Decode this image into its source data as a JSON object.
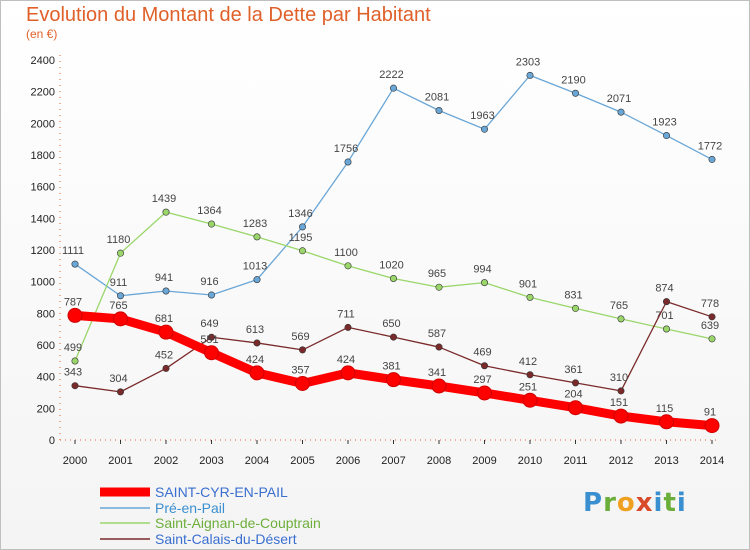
{
  "title": "Evolution du Montant de la Dette par Habitant",
  "subtitle": "(en €)",
  "logo": "Proxiti",
  "chart_data": {
    "type": "line",
    "title": "Evolution du Montant de la Dette par Habitant",
    "ylabel": "(en €)",
    "ylim": [
      0,
      2400
    ],
    "yticks": [
      0,
      200,
      400,
      600,
      800,
      1000,
      1200,
      1400,
      1600,
      1800,
      2000,
      2200,
      2400
    ],
    "x": [
      "2000",
      "2001",
      "2002",
      "2003",
      "2004",
      "2005",
      "2006",
      "2007",
      "2008",
      "2009",
      "2010",
      "2011",
      "2012",
      "2013",
      "2014"
    ],
    "legend_position": "bottom-left",
    "grid": false,
    "series": [
      {
        "name": "SAINT-CYR-EN-PAIL",
        "color": "#ff0000",
        "values": [
          787,
          765,
          681,
          551,
          424,
          357,
          424,
          381,
          341,
          297,
          251,
          204,
          151,
          115,
          91
        ]
      },
      {
        "name": "Pré-en-Pail",
        "color": "#6aa6d6",
        "values": [
          1111,
          911,
          941,
          916,
          1013,
          1346,
          1756,
          2222,
          2081,
          1963,
          2303,
          2190,
          2071,
          1923,
          1772
        ]
      },
      {
        "name": "Saint-Aignan-de-Couptrain",
        "color": "#9ad66a",
        "values": [
          499,
          1180,
          1439,
          1364,
          1283,
          1195,
          1100,
          1020,
          965,
          994,
          901,
          831,
          765,
          701,
          639
        ]
      },
      {
        "name": "Saint-Calais-du-Désert",
        "color": "#7a2a2a",
        "values": [
          343,
          304,
          452,
          649,
          613,
          569,
          711,
          650,
          587,
          469,
          412,
          361,
          310,
          874,
          778
        ]
      }
    ]
  }
}
